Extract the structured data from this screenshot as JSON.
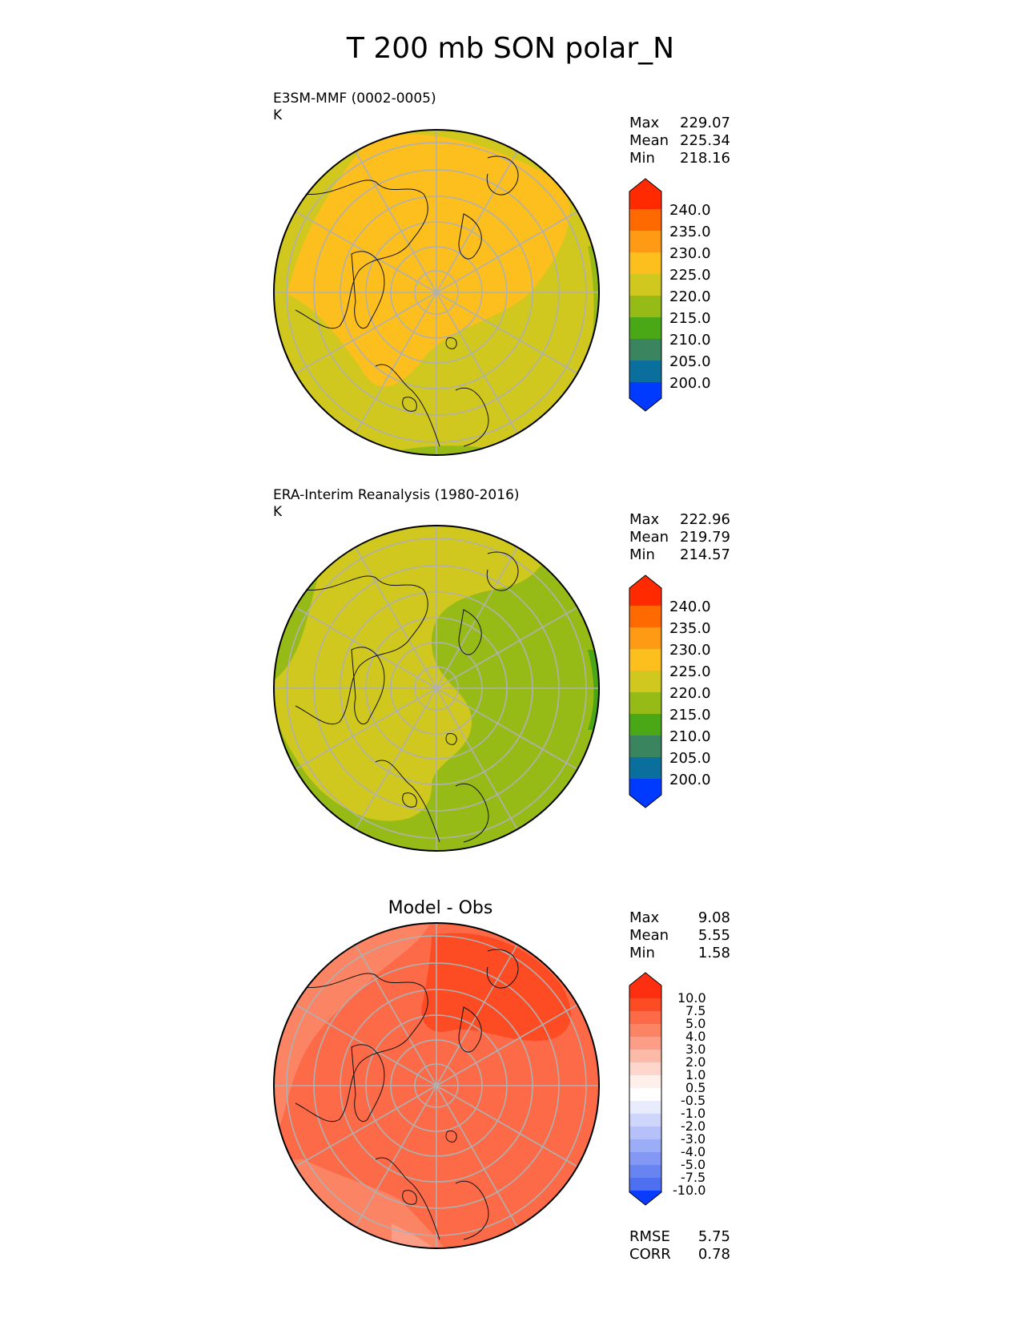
{
  "figure": {
    "title": "T 200 mb SON polar_N"
  },
  "panels": [
    {
      "label_line1": "E3SM-MMF (0002-0005)",
      "label_line2": "K",
      "stats": [
        {
          "name": "Max",
          "value": "229.07"
        },
        {
          "name": "Mean",
          "value": "225.34"
        },
        {
          "name": "Min",
          "value": "218.16"
        }
      ],
      "colorbar_ticks": [
        "240.0",
        "235.0",
        "230.0",
        "225.0",
        "220.0",
        "215.0",
        "210.0",
        "205.0",
        "200.0"
      ]
    },
    {
      "label_line1": "ERA-Interim Reanalysis (1980-2016)",
      "label_line2": "K",
      "stats": [
        {
          "name": "Max",
          "value": "222.96"
        },
        {
          "name": "Mean",
          "value": "219.79"
        },
        {
          "name": "Min",
          "value": "214.57"
        }
      ],
      "colorbar_ticks": [
        "240.0",
        "235.0",
        "230.0",
        "225.0",
        "220.0",
        "215.0",
        "210.0",
        "205.0",
        "200.0"
      ]
    },
    {
      "title": "Model - Obs",
      "stats": [
        {
          "name": "Max",
          "value": "9.08"
        },
        {
          "name": "Mean",
          "value": "5.55"
        },
        {
          "name": "Min",
          "value": "1.58"
        }
      ],
      "colorbar_ticks": [
        "10.0",
        "7.5",
        "5.0",
        "4.0",
        "3.0",
        "2.0",
        "1.0",
        "0.5",
        "-0.5",
        "-1.0",
        "-2.0",
        "-3.0",
        "-4.0",
        "-5.0",
        "-7.5",
        "-10.0"
      ],
      "metrics": [
        {
          "name": "RMSE",
          "value": "5.75"
        },
        {
          "name": "CORR",
          "value": "0.78"
        }
      ]
    }
  ],
  "colors": {
    "abs_bins": [
      "#ff2a00",
      "#ff6a00",
      "#ff9a14",
      "#fdbf1e",
      "#d0c81e",
      "#97bb16",
      "#4aa716",
      "#3a8560",
      "#0b6f9e",
      "#0039ff"
    ],
    "diff_bins": [
      "#fd2f10",
      "#fd4b24",
      "#fc6a48",
      "#fb8465",
      "#fc9e87",
      "#fcbaa9",
      "#fed6cc",
      "#fff0ec",
      "#ffffff",
      "#e8ecfd",
      "#ced7fb",
      "#b5c1f8",
      "#9badf6",
      "#8298f4",
      "#6884f1",
      "#4e6ff0",
      "#0a3cff"
    ],
    "land_outline": "#111111",
    "grid": "#b0b0b0"
  },
  "chart_data": [
    {
      "type": "heatmap",
      "title": "E3SM-MMF (0002-0005)",
      "projection": "north polar stereographic",
      "variable": "T 200 mb SON",
      "units": "K",
      "levels": [
        200,
        205,
        210,
        215,
        220,
        225,
        230,
        235,
        240
      ],
      "extend": "both",
      "max": 229.07,
      "mean": 225.34,
      "min": 218.16
    },
    {
      "type": "heatmap",
      "title": "ERA-Interim Reanalysis (1980-2016)",
      "projection": "north polar stereographic",
      "variable": "T 200 mb SON",
      "units": "K",
      "levels": [
        200,
        205,
        210,
        215,
        220,
        225,
        230,
        235,
        240
      ],
      "extend": "both",
      "max": 222.96,
      "mean": 219.79,
      "min": 214.57
    },
    {
      "type": "heatmap",
      "title": "Model - Obs",
      "projection": "north polar stereographic",
      "variable": "T 200 mb SON difference",
      "units": "K",
      "levels": [
        -10,
        -7.5,
        -5,
        -4,
        -3,
        -2,
        -1,
        -0.5,
        0.5,
        1,
        2,
        3,
        4,
        5,
        7.5,
        10
      ],
      "extend": "both",
      "max": 9.08,
      "mean": 5.55,
      "min": 1.58,
      "rmse": 5.75,
      "corr": 0.78
    }
  ]
}
